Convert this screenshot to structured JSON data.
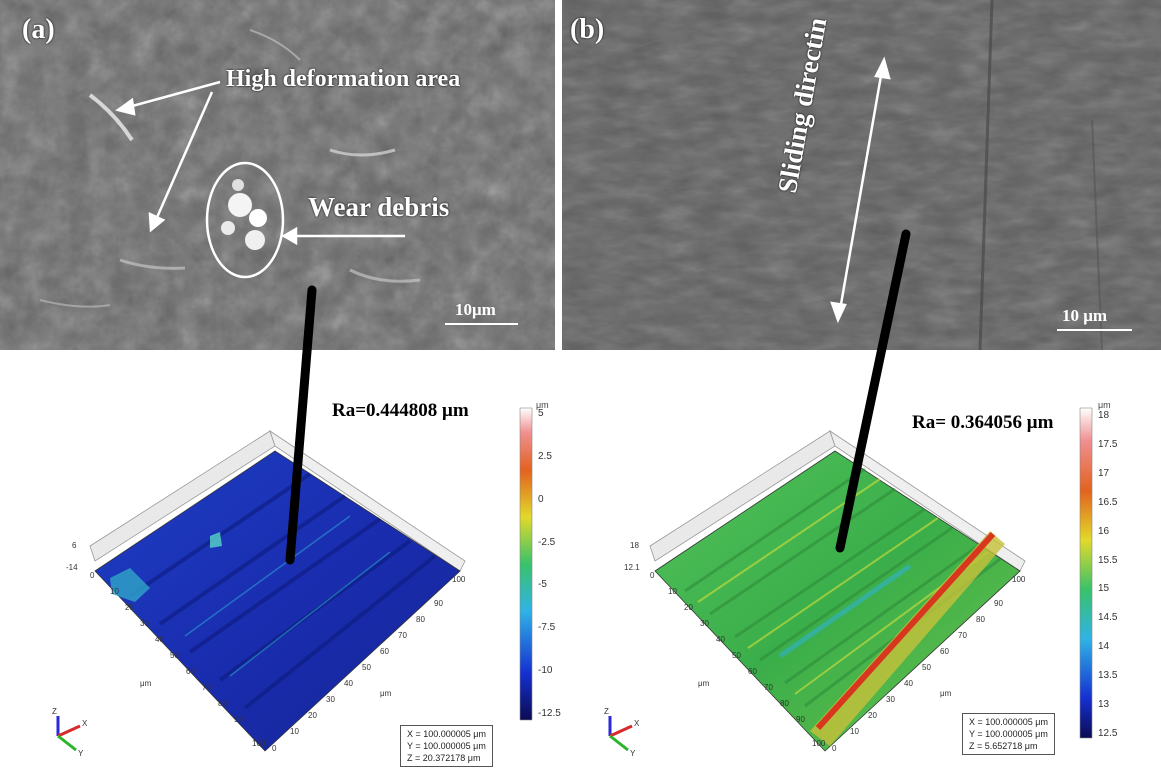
{
  "panel_a": {
    "label": "(a)",
    "annotation_deformation": "High deformation area",
    "annotation_debris": "Wear debris",
    "scale_bar": "10μm",
    "ra": "Ra=0.444808 μm",
    "colorbar_unit": "μm",
    "colorbar_ticks": [
      "5",
      "2.5",
      "0",
      "-2.5",
      "-5",
      "-7.5",
      "-10",
      "-12.5"
    ],
    "info": {
      "x": "X = 100.000005 μm",
      "y": "Y = 100.000005 μm",
      "z": "Z = 20.372178 μm"
    }
  },
  "panel_b": {
    "label": "(b)",
    "annotation_sliding": "Sliding directin",
    "scale_bar": "10 μm",
    "ra": "Ra= 0.364056 μm",
    "colorbar_unit": "μm",
    "colorbar_ticks": [
      "18",
      "17.5",
      "17",
      "16.5",
      "16",
      "15.5",
      "15",
      "14.5",
      "14",
      "13.5",
      "13",
      "12.5"
    ],
    "info": {
      "x": "X = 100.000005 μm",
      "y": "Y = 100.000005 μm",
      "z": "Z = 5.652718 μm"
    }
  },
  "colors": {
    "sem_gray": "#6f6f6f",
    "surface_a": "#1a2fb8",
    "surface_b": "#3fb34a",
    "ridge_red": "#d9361f",
    "connector": "#000000"
  }
}
